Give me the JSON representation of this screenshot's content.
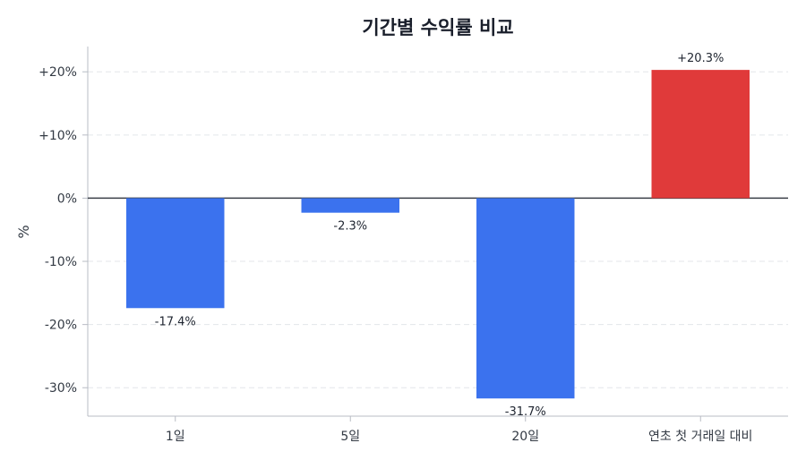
{
  "chart_data": {
    "type": "bar",
    "title": "기간별 수익률 비교",
    "ylabel": "%",
    "xlabel": "",
    "categories": [
      "1일",
      "5일",
      "20일",
      "연초 첫 거래일 대비"
    ],
    "values": [
      -17.4,
      -2.3,
      -31.7,
      20.3
    ],
    "value_labels": [
      "-17.4%",
      "-2.3%",
      "-31.7%",
      "+20.3%"
    ],
    "yticks": [
      -30,
      -20,
      -10,
      0,
      10,
      20
    ],
    "ytick_labels": [
      "-30%",
      "-20%",
      "-10%",
      "0%",
      "+10%",
      "+20%"
    ],
    "ylim": [
      -34.5,
      24
    ],
    "grid": "horizontal dashed",
    "colors": {
      "negative": "#3b72ee",
      "positive": "#e03a3a",
      "zero_line": "#3a3f47",
      "grid": "#e3e6ea",
      "axis": "#b8bcc4"
    }
  }
}
